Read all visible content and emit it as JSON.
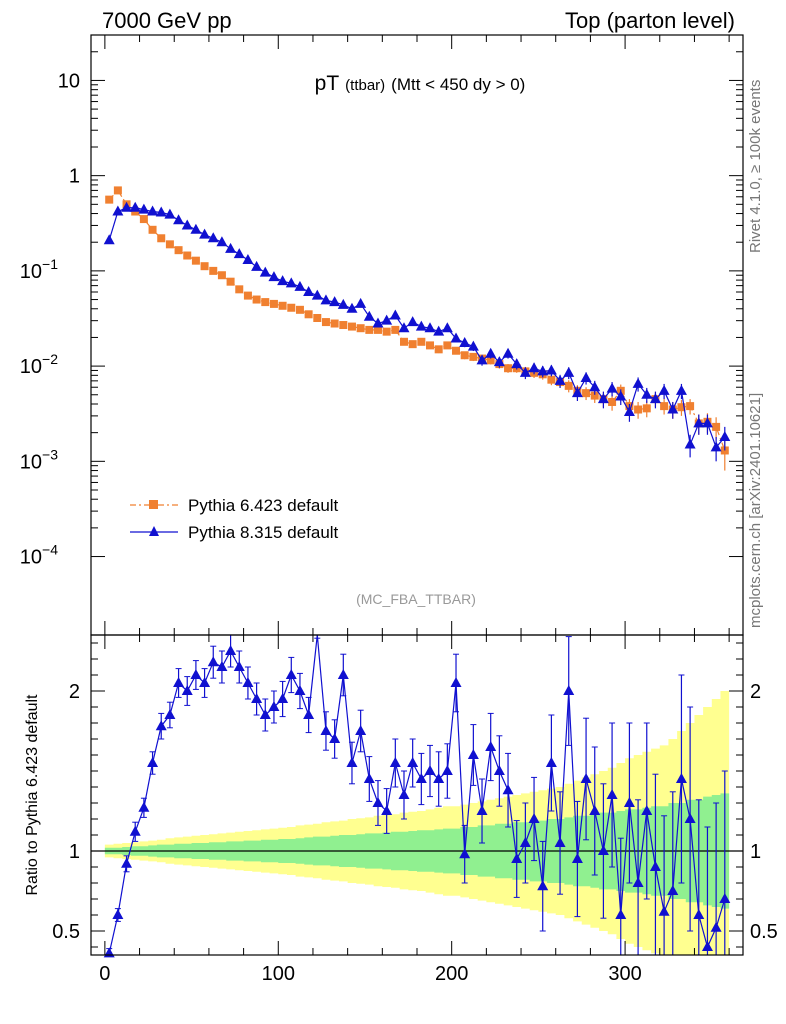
{
  "header": {
    "left": "7000 GeV pp",
    "right": "Top (parton level)"
  },
  "side_text": {
    "top": "Rivet 4.1.0, ≥ 100k events",
    "bottom": "mcplots.cern.ch [arXiv:2401.10621]"
  },
  "title": {
    "main": "pT",
    "sub1": "(ttbar)",
    "sub2": "(Mtt < 450 dy > 0)"
  },
  "analysis_label": "(MC_FBA_TTBAR)",
  "ratio_ylabel": "Ratio to Pythia 6.423 default",
  "colors": {
    "pythia6": "#f08030",
    "pythia8": "#1010d0",
    "band_inner": "#90f090",
    "band_outer": "#ffff90"
  },
  "chart_data": [
    {
      "type": "line",
      "title": "pT (ttbar) (Mtt < 450 dy > 0)",
      "yscale": "log",
      "xlim": [
        -8,
        368
      ],
      "ylim": [
        1.5e-05,
        30
      ],
      "y_ticks": [
        {
          "value": 10,
          "label": "10"
        },
        {
          "value": 1,
          "label": "1"
        },
        {
          "value": 0.1,
          "label": "10",
          "exp": "−1"
        },
        {
          "value": 0.01,
          "label": "10",
          "exp": "−2"
        },
        {
          "value": 0.001,
          "label": "10",
          "exp": "−3"
        },
        {
          "value": 0.0001,
          "label": "10",
          "exp": "−4"
        }
      ],
      "legend": [
        "Pythia 6.423 default",
        "Pythia 8.315 default"
      ],
      "legend_position": "bottom-left",
      "series": [
        {
          "name": "Pythia 6.423 default",
          "marker": "square",
          "x": [
            2.5,
            7.5,
            12.5,
            17.5,
            22.5,
            27.5,
            32.5,
            37.5,
            42.5,
            47.5,
            52.5,
            57.5,
            62.5,
            67.5,
            72.5,
            77.5,
            82.5,
            87.5,
            92.5,
            97.5,
            102.5,
            107.5,
            112.5,
            117.5,
            122.5,
            127.5,
            132.5,
            137.5,
            142.5,
            147.5,
            152.5,
            157.5,
            162.5,
            167.5,
            172.5,
            177.5,
            182.5,
            187.5,
            192.5,
            197.5,
            202.5,
            207.5,
            212.5,
            217.5,
            222.5,
            227.5,
            232.5,
            237.5,
            242.5,
            247.5,
            252.5,
            257.5,
            262.5,
            267.5,
            272.5,
            277.5,
            282.5,
            287.5,
            292.5,
            297.5,
            302.5,
            307.5,
            312.5,
            317.5,
            322.5,
            327.5,
            332.5,
            337.5,
            342.5,
            347.5,
            352.5,
            357.5
          ],
          "y": [
            0.56,
            0.7,
            0.5,
            0.42,
            0.35,
            0.27,
            0.22,
            0.19,
            0.165,
            0.145,
            0.128,
            0.112,
            0.1,
            0.09,
            0.077,
            0.064,
            0.055,
            0.05,
            0.047,
            0.045,
            0.043,
            0.041,
            0.039,
            0.035,
            0.032,
            0.029,
            0.028,
            0.027,
            0.026,
            0.025,
            0.024,
            0.024,
            0.023,
            0.024,
            0.018,
            0.017,
            0.018,
            0.0165,
            0.015,
            0.0165,
            0.0145,
            0.013,
            0.0125,
            0.012,
            0.0115,
            0.0105,
            0.0095,
            0.0095,
            0.0088,
            0.0085,
            0.0082,
            0.0072,
            0.0068,
            0.0062,
            0.0055,
            0.0052,
            0.0049,
            0.0045,
            0.0042,
            0.0055,
            0.0038,
            0.0035,
            0.0036,
            0.0045,
            0.0038,
            0.0035,
            0.0037,
            0.0038,
            0.0025,
            0.0026,
            0.0023,
            0.0013
          ],
          "yerr": [
            0.02,
            0.02,
            0.02,
            0.015,
            0.012,
            0.01,
            0.008,
            0.007,
            0.006,
            0.005,
            0.005,
            0.004,
            0.004,
            0.0035,
            0.003,
            0.0028,
            0.0025,
            0.0022,
            0.0021,
            0.002,
            0.002,
            0.0019,
            0.0018,
            0.0017,
            0.0016,
            0.0015,
            0.0015,
            0.0014,
            0.0014,
            0.0014,
            0.0014,
            0.0014,
            0.0014,
            0.0014,
            0.0013,
            0.0013,
            0.0013,
            0.0013,
            0.0013,
            0.0013,
            0.0012,
            0.0012,
            0.0012,
            0.0011,
            0.0011,
            0.0011,
            0.001,
            0.001,
            0.001,
            0.001,
            0.001,
            0.0009,
            0.0009,
            0.0009,
            0.0008,
            0.0008,
            0.0008,
            0.0008,
            0.0008,
            0.0009,
            0.0007,
            0.0007,
            0.0007,
            0.0008,
            0.0007,
            0.0007,
            0.0007,
            0.0007,
            0.0006,
            0.0006,
            0.0006,
            0.0005
          ]
        },
        {
          "name": "Pythia 8.315 default",
          "marker": "triangle",
          "x": [
            2.5,
            7.5,
            12.5,
            17.5,
            22.5,
            27.5,
            32.5,
            37.5,
            42.5,
            47.5,
            52.5,
            57.5,
            62.5,
            67.5,
            72.5,
            77.5,
            82.5,
            87.5,
            92.5,
            97.5,
            102.5,
            107.5,
            112.5,
            117.5,
            122.5,
            127.5,
            132.5,
            137.5,
            142.5,
            147.5,
            152.5,
            157.5,
            162.5,
            167.5,
            172.5,
            177.5,
            182.5,
            187.5,
            192.5,
            197.5,
            202.5,
            207.5,
            212.5,
            217.5,
            222.5,
            227.5,
            232.5,
            237.5,
            242.5,
            247.5,
            252.5,
            257.5,
            262.5,
            267.5,
            272.5,
            277.5,
            282.5,
            287.5,
            292.5,
            297.5,
            302.5,
            307.5,
            312.5,
            317.5,
            322.5,
            327.5,
            332.5,
            337.5,
            342.5,
            347.5,
            352.5,
            357.5
          ],
          "y": [
            0.21,
            0.42,
            0.46,
            0.46,
            0.44,
            0.42,
            0.41,
            0.39,
            0.34,
            0.3,
            0.27,
            0.24,
            0.22,
            0.2,
            0.17,
            0.15,
            0.13,
            0.11,
            0.096,
            0.086,
            0.078,
            0.074,
            0.068,
            0.06,
            0.055,
            0.049,
            0.047,
            0.044,
            0.04,
            0.045,
            0.033,
            0.028,
            0.03,
            0.034,
            0.025,
            0.029,
            0.026,
            0.025,
            0.023,
            0.025,
            0.0195,
            0.0175,
            0.016,
            0.0115,
            0.0135,
            0.011,
            0.0135,
            0.0105,
            0.0085,
            0.0095,
            0.0088,
            0.009,
            0.007,
            0.0085,
            0.0052,
            0.0075,
            0.006,
            0.0045,
            0.0058,
            0.0048,
            0.0033,
            0.0065,
            0.005,
            0.0045,
            0.0055,
            0.0035,
            0.0055,
            0.0015,
            0.0025,
            0.0025,
            0.0014,
            0.0018
          ],
          "yerr": [
            0.01,
            0.012,
            0.013,
            0.012,
            0.012,
            0.011,
            0.011,
            0.01,
            0.009,
            0.008,
            0.008,
            0.007,
            0.007,
            0.006,
            0.006,
            0.005,
            0.005,
            0.0045,
            0.004,
            0.0038,
            0.0036,
            0.0034,
            0.0033,
            0.0031,
            0.003,
            0.0029,
            0.0028,
            0.0028,
            0.0027,
            0.0028,
            0.0025,
            0.0024,
            0.0024,
            0.0025,
            0.0022,
            0.0023,
            0.0022,
            0.0021,
            0.002,
            0.0021,
            0.0018,
            0.0017,
            0.0016,
            0.0014,
            0.0015,
            0.0014,
            0.0015,
            0.0013,
            0.0012,
            0.0013,
            0.0012,
            0.0012,
            0.0011,
            0.0012,
            0.0009,
            0.0011,
            0.001,
            0.0009,
            0.001,
            0.0009,
            0.0007,
            0.0011,
            0.0009,
            0.0009,
            0.001,
            0.0007,
            0.001,
            0.0004,
            0.0006,
            0.0006,
            0.0004,
            0.0005
          ]
        }
      ]
    },
    {
      "type": "line",
      "ylabel": "Ratio to Pythia 6.423 default",
      "xlim": [
        -8,
        368
      ],
      "ylim": [
        0.35,
        2.35
      ],
      "x_ticks": [
        0,
        100,
        200,
        300
      ],
      "y_ticks": [
        0.5,
        1,
        2
      ],
      "reference_line": 1,
      "bands": {
        "x": [
          2.5,
          7.5,
          12.5,
          17.5,
          22.5,
          27.5,
          32.5,
          37.5,
          42.5,
          47.5,
          52.5,
          57.5,
          62.5,
          67.5,
          72.5,
          77.5,
          82.5,
          87.5,
          92.5,
          97.5,
          102.5,
          107.5,
          112.5,
          117.5,
          122.5,
          127.5,
          132.5,
          137.5,
          142.5,
          147.5,
          152.5,
          157.5,
          162.5,
          167.5,
          172.5,
          177.5,
          182.5,
          187.5,
          192.5,
          197.5,
          202.5,
          207.5,
          212.5,
          217.5,
          222.5,
          227.5,
          232.5,
          237.5,
          242.5,
          247.5,
          252.5,
          257.5,
          262.5,
          267.5,
          272.5,
          277.5,
          282.5,
          287.5,
          292.5,
          297.5,
          302.5,
          307.5,
          312.5,
          317.5,
          322.5,
          327.5,
          332.5,
          337.5,
          342.5,
          347.5,
          352.5,
          357.5
        ],
        "inner": [
          0.02,
          0.02,
          0.025,
          0.03,
          0.03,
          0.035,
          0.04,
          0.04,
          0.045,
          0.045,
          0.05,
          0.05,
          0.055,
          0.055,
          0.06,
          0.06,
          0.065,
          0.065,
          0.07,
          0.07,
          0.075,
          0.075,
          0.08,
          0.085,
          0.09,
          0.09,
          0.095,
          0.1,
          0.1,
          0.105,
          0.11,
          0.11,
          0.115,
          0.12,
          0.12,
          0.125,
          0.13,
          0.13,
          0.135,
          0.14,
          0.14,
          0.15,
          0.15,
          0.16,
          0.16,
          0.17,
          0.17,
          0.18,
          0.18,
          0.19,
          0.19,
          0.2,
          0.2,
          0.21,
          0.22,
          0.22,
          0.23,
          0.24,
          0.24,
          0.25,
          0.26,
          0.26,
          0.27,
          0.28,
          0.28,
          0.3,
          0.3,
          0.32,
          0.32,
          0.34,
          0.35,
          0.36
        ],
        "outer": [
          0.04,
          0.045,
          0.05,
          0.055,
          0.06,
          0.065,
          0.07,
          0.08,
          0.085,
          0.09,
          0.095,
          0.1,
          0.105,
          0.11,
          0.115,
          0.12,
          0.125,
          0.13,
          0.135,
          0.14,
          0.145,
          0.15,
          0.16,
          0.165,
          0.17,
          0.18,
          0.185,
          0.19,
          0.2,
          0.205,
          0.21,
          0.22,
          0.225,
          0.23,
          0.24,
          0.245,
          0.25,
          0.26,
          0.27,
          0.28,
          0.28,
          0.29,
          0.3,
          0.31,
          0.32,
          0.33,
          0.34,
          0.35,
          0.36,
          0.37,
          0.38,
          0.39,
          0.4,
          0.42,
          0.44,
          0.46,
          0.48,
          0.5,
          0.52,
          0.55,
          0.58,
          0.6,
          0.62,
          0.64,
          0.66,
          0.7,
          0.75,
          0.8,
          0.85,
          0.9,
          0.95,
          1.0
        ]
      },
      "series": [
        {
          "name": "Pythia 8.315 default",
          "marker": "triangle",
          "x": [
            2.5,
            7.5,
            12.5,
            17.5,
            22.5,
            27.5,
            32.5,
            37.5,
            42.5,
            47.5,
            52.5,
            57.5,
            62.5,
            67.5,
            72.5,
            77.5,
            82.5,
            87.5,
            92.5,
            97.5,
            102.5,
            107.5,
            112.5,
            117.5,
            122.5,
            127.5,
            132.5,
            137.5,
            142.5,
            147.5,
            152.5,
            157.5,
            162.5,
            167.5,
            172.5,
            177.5,
            182.5,
            187.5,
            192.5,
            197.5,
            202.5,
            207.5,
            212.5,
            217.5,
            222.5,
            227.5,
            232.5,
            237.5,
            242.5,
            247.5,
            252.5,
            257.5,
            262.5,
            267.5,
            272.5,
            277.5,
            282.5,
            287.5,
            292.5,
            297.5,
            302.5,
            307.5,
            312.5,
            317.5,
            322.5,
            327.5,
            332.5,
            337.5,
            342.5,
            347.5,
            352.5,
            357.5
          ],
          "y": [
            0.36,
            0.6,
            0.92,
            1.12,
            1.27,
            1.55,
            1.78,
            1.85,
            2.05,
            2.0,
            2.1,
            2.05,
            2.18,
            2.15,
            2.25,
            2.15,
            2.05,
            1.95,
            1.85,
            1.9,
            1.95,
            2.1,
            2.0,
            1.85,
            2.45,
            1.75,
            1.7,
            2.1,
            1.55,
            1.75,
            1.45,
            1.3,
            1.25,
            1.55,
            1.35,
            1.55,
            1.45,
            1.5,
            1.45,
            1.5,
            2.05,
            0.98,
            1.6,
            1.25,
            1.65,
            1.5,
            1.38,
            0.95,
            1.05,
            1.2,
            0.78,
            1.55,
            1.05,
            2.0,
            0.95,
            1.45,
            1.25,
            1.0,
            1.35,
            0.6,
            1.3,
            0.8,
            1.25,
            0.9,
            0.62,
            0.75,
            1.45,
            1.2,
            0.6,
            0.4,
            0.52,
            0.7
          ],
          "yerr": [
            0.03,
            0.04,
            0.05,
            0.06,
            0.06,
            0.07,
            0.08,
            0.08,
            0.09,
            0.09,
            0.09,
            0.09,
            0.1,
            0.1,
            0.1,
            0.1,
            0.1,
            0.1,
            0.1,
            0.1,
            0.11,
            0.11,
            0.11,
            0.11,
            0.12,
            0.12,
            0.12,
            0.13,
            0.13,
            0.13,
            0.14,
            0.14,
            0.14,
            0.15,
            0.15,
            0.15,
            0.16,
            0.16,
            0.17,
            0.17,
            0.18,
            0.18,
            0.19,
            0.2,
            0.21,
            0.22,
            0.23,
            0.24,
            0.25,
            0.26,
            0.28,
            0.3,
            0.32,
            0.34,
            0.36,
            0.38,
            0.4,
            0.42,
            0.45,
            0.48,
            0.5,
            0.52,
            0.55,
            0.58,
            0.6,
            0.62,
            0.65,
            0.7,
            0.72,
            0.75,
            0.78,
            0.8
          ]
        }
      ]
    }
  ]
}
